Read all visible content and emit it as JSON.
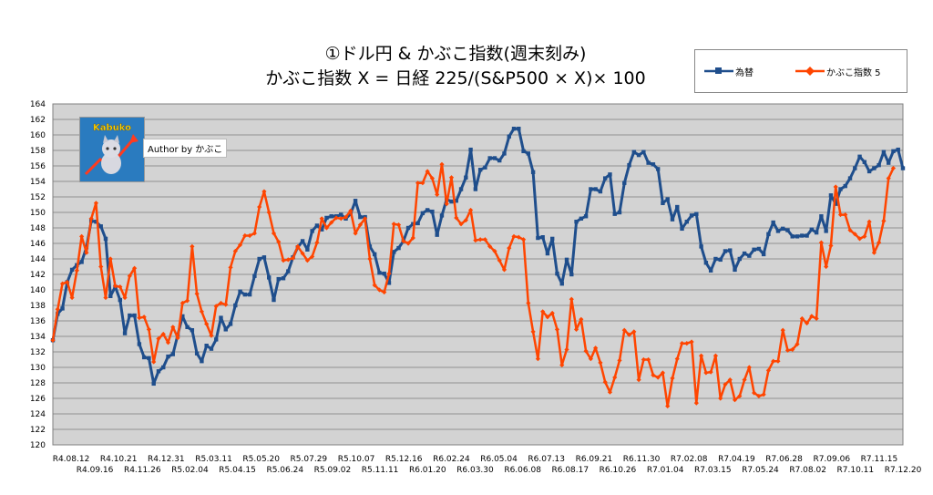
{
  "chart_data": {
    "type": "line",
    "title_line1": "①ドル円 & かぶこ指数(週末刻み)",
    "title_line2": "かぶこ指数 X = 日経 225/(S&P500 × X)× 100",
    "ylim": [
      120,
      164
    ],
    "ytick_step": 2,
    "grid": true,
    "legend_position": "top-right",
    "author": "Author by かぶこ",
    "logo_text": "Kabuko",
    "x_ticks_row1": [
      "R4.08.12",
      "R4.10.21",
      "R4.12.31",
      "R5.03.11",
      "R5.05.20",
      "R5.07.29",
      "R5.10.07",
      "R5.12.16",
      "R6.02.24",
      "R6.05.04",
      "R6.07.13",
      "R6.09.21",
      "R6.11.30",
      "R7.02.08",
      "R7.04.19",
      "R7.06.28",
      "R7.09.06",
      "R7.11.15"
    ],
    "x_ticks_row2": [
      "R4.09.16",
      "R4.11.26",
      "R5.02.04",
      "R5.04.15",
      "R5.06.24",
      "R5.09.02",
      "R5.11.11",
      "R6.01.20",
      "R6.03.30",
      "R6.06.08",
      "R6.08.17",
      "R6.10.26",
      "R7.01.04",
      "R7.03.15",
      "R7.05.24",
      "R7.08.02",
      "R7.10.11",
      "R7.12.20"
    ],
    "series": [
      {
        "name": "為替",
        "color": "#1f4e8c",
        "values": [
          133.5,
          136.9,
          137.6,
          141.0,
          142.6,
          143.2,
          143.6,
          145.5,
          148.9,
          148.8,
          148.2,
          146.6,
          139.2,
          140.4,
          138.7,
          134.4,
          136.7,
          136.7,
          133.0,
          131.3,
          131.2,
          127.9,
          129.5,
          130.0,
          131.4,
          131.7,
          134.2,
          136.6,
          135.2,
          134.8,
          131.8,
          130.8,
          132.8,
          132.4,
          133.6,
          136.4,
          134.9,
          135.6,
          138.0,
          139.8,
          139.4,
          139.4,
          141.8,
          144.0,
          144.2,
          141.6,
          138.7,
          141.4,
          141.5,
          142.4,
          144.2,
          145.5,
          146.3,
          145.2,
          147.6,
          148.3,
          147.8,
          149.3,
          149.5,
          149.5,
          149.7,
          149.2,
          149.8,
          151.5,
          149.4,
          149.4,
          145.6,
          144.6,
          142.2,
          142.1,
          140.9,
          144.9,
          145.4,
          146.3,
          148.0,
          148.5,
          148.6,
          149.9,
          150.3,
          150.1,
          147.1,
          149.6,
          151.7,
          151.4,
          151.5,
          153.0,
          154.5,
          158.1,
          153.0,
          155.5,
          155.8,
          157.0,
          157.0,
          156.7,
          157.6,
          159.8,
          160.8,
          160.8,
          157.9,
          157.6,
          155.2,
          146.7,
          146.8,
          144.7,
          146.6,
          142.1,
          140.8,
          143.9,
          142.0,
          148.8,
          149.2,
          149.5,
          153.0,
          153.0,
          152.7,
          154.4,
          154.9,
          149.8,
          150.0,
          153.8,
          156.1,
          157.8,
          157.4,
          157.8,
          156.4,
          156.2,
          155.6,
          151.2,
          151.7,
          149.1,
          150.7,
          147.9,
          148.8,
          149.6,
          149.8,
          145.6,
          143.5,
          142.5,
          144.0,
          143.9,
          145.0,
          145.1,
          142.6,
          144.0,
          144.7,
          144.4,
          145.2,
          145.3,
          144.6,
          147.2,
          148.7,
          147.6,
          147.9,
          147.7,
          146.9,
          146.9,
          147.0,
          147.0,
          147.8,
          147.4,
          149.5,
          147.6,
          152.2,
          151.1,
          153.0,
          153.4,
          154.4,
          155.7,
          157.2,
          156.5,
          155.3,
          155.7,
          156.1,
          157.8,
          156.4,
          157.9,
          158.1,
          155.7
        ]
      },
      {
        "name": "かぶこ指数 5",
        "color": "#ff4500",
        "values": [
          133.5,
          137.5,
          140.8,
          141.0,
          139.0,
          142.5,
          146.9,
          144.8,
          149.2,
          151.2,
          143.0,
          139.0,
          144.0,
          140.5,
          140.4,
          139.0,
          141.8,
          142.8,
          136.4,
          136.5,
          134.9,
          130.7,
          133.7,
          134.3,
          133.2,
          135.2,
          133.8,
          138.3,
          138.6,
          145.6,
          139.5,
          137.2,
          135.6,
          134.1,
          137.9,
          138.3,
          138.1,
          142.9,
          145.0,
          145.8,
          147.0,
          147.0,
          147.3,
          150.7,
          152.7,
          150.0,
          147.3,
          146.2,
          143.8,
          143.9,
          144.1,
          145.6,
          144.7,
          143.8,
          144.3,
          146.1,
          149.2,
          148.0,
          148.7,
          149.3,
          149.2,
          149.4,
          150.2,
          147.3,
          148.4,
          149.2,
          144.0,
          140.6,
          140.0,
          139.7,
          142.1,
          148.5,
          148.4,
          146.3,
          146.0,
          146.7,
          153.8,
          153.8,
          155.3,
          154.4,
          152.3,
          156.2,
          151.1,
          154.5,
          149.3,
          148.5,
          149.0,
          150.3,
          146.4,
          146.5,
          146.5,
          145.6,
          145.0,
          143.8,
          142.6,
          145.4,
          146.9,
          146.8,
          146.5,
          138.3,
          134.6,
          131.1,
          137.2,
          136.5,
          137.0,
          134.9,
          130.3,
          132.3,
          138.8,
          134.9,
          136.2,
          132.1,
          131.1,
          132.5,
          130.6,
          128.1,
          126.8,
          128.7,
          130.9,
          134.8,
          134.2,
          134.6,
          128.4,
          131.0,
          131.0,
          129.0,
          128.7,
          129.3,
          125.0,
          128.6,
          131.1,
          133.1,
          133.1,
          133.3,
          125.4,
          131.5,
          129.3,
          129.4,
          131.5,
          126.0,
          127.8,
          128.4,
          125.8,
          126.3,
          128.4,
          130.0,
          126.7,
          126.3,
          126.5,
          129.6,
          130.8,
          130.8,
          134.8,
          132.2,
          132.3,
          133.0,
          136.3,
          135.7,
          136.6,
          136.3,
          146.1,
          143.0,
          145.7,
          153.3,
          149.7,
          149.7,
          147.7,
          147.2,
          146.6,
          146.9,
          148.8,
          144.8,
          146.1,
          148.9,
          154.4,
          155.7
        ]
      }
    ]
  }
}
